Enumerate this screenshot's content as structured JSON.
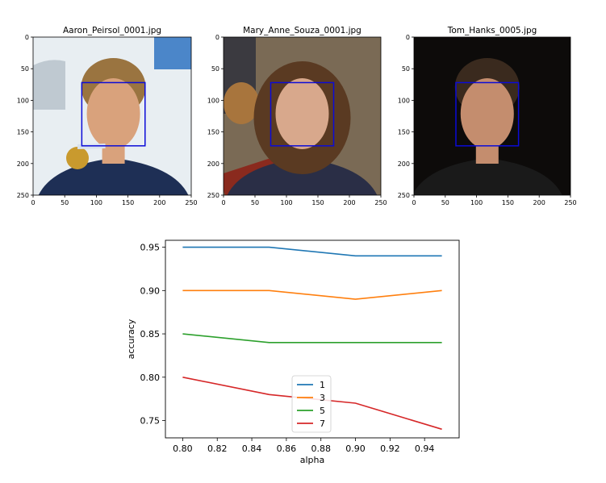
{
  "figure": {
    "images": [
      {
        "title": "Aaron_Peirsol_0001.jpg",
        "yticks": [
          "0",
          "50",
          "100",
          "150",
          "200",
          "250"
        ],
        "xticks": [
          "0",
          "50",
          "100",
          "150",
          "200",
          "250"
        ],
        "photo_colors": {
          "bg": "#e8eef2",
          "hair": "#9a7440",
          "skin": "#d9a27c",
          "shirt": "#1e2f55",
          "medal": "#c99a2e"
        }
      },
      {
        "title": "Mary_Anne_Souza_0001.jpg",
        "yticks": [
          "0",
          "50",
          "100",
          "150",
          "200",
          "250"
        ],
        "xticks": [
          "0",
          "50",
          "100",
          "150",
          "200",
          "250"
        ],
        "photo_colors": {
          "bg": "#7a6a55",
          "hair": "#5a3a22",
          "skin": "#d8a88c",
          "shirt": "#2a2e46",
          "medal": "#c2a065"
        }
      },
      {
        "title": "Tom_Hanks_0005.jpg",
        "yticks": [
          "0",
          "50",
          "100",
          "150",
          "200",
          "250"
        ],
        "xticks": [
          "0",
          "50",
          "100",
          "150",
          "200",
          "250"
        ],
        "photo_colors": {
          "bg": "#0d0b0a",
          "hair": "#3a2a1e",
          "skin": "#c48d6e",
          "shirt": "#1a1a1a",
          "medal": "#1a1a1a"
        }
      }
    ],
    "box_color": "#0b0bd8"
  },
  "chart_data": [
    {
      "type": "image",
      "title": "Aaron_Peirsol_0001.jpg",
      "xlim": [
        0,
        250
      ],
      "ylim": [
        250,
        0
      ],
      "xticks": [
        0,
        50,
        100,
        150,
        200,
        250
      ],
      "yticks": [
        0,
        50,
        100,
        150,
        200,
        250
      ],
      "annotations": [
        {
          "type": "rectangle",
          "x0": 77,
          "y0": 72,
          "x1": 177,
          "y1": 172,
          "color": "#0b0bd8"
        }
      ]
    },
    {
      "type": "image",
      "title": "Mary_Anne_Souza_0001.jpg",
      "xlim": [
        0,
        250
      ],
      "ylim": [
        250,
        0
      ],
      "xticks": [
        0,
        50,
        100,
        150,
        200,
        250
      ],
      "yticks": [
        0,
        50,
        100,
        150,
        200,
        250
      ],
      "annotations": [
        {
          "type": "rectangle",
          "x0": 75,
          "y0": 72,
          "x1": 175,
          "y1": 172,
          "color": "#0b0bd8"
        }
      ]
    },
    {
      "type": "image",
      "title": "Tom_Hanks_0005.jpg",
      "xlim": [
        0,
        250
      ],
      "ylim": [
        250,
        0
      ],
      "xticks": [
        0,
        50,
        100,
        150,
        200,
        250
      ],
      "yticks": [
        0,
        50,
        100,
        150,
        200,
        250
      ],
      "annotations": [
        {
          "type": "rectangle",
          "x0": 67,
          "y0": 72,
          "x1": 167,
          "y1": 172,
          "color": "#0b0bd8"
        }
      ]
    },
    {
      "type": "line",
      "title": "",
      "xlabel": "alpha",
      "ylabel": "accuracy",
      "x": [
        0.8,
        0.85,
        0.9,
        0.95
      ],
      "xlim": [
        0.79,
        0.96
      ],
      "ylim": [
        0.73,
        0.958
      ],
      "xticks": [
        "0.80",
        "0.82",
        "0.84",
        "0.86",
        "0.88",
        "0.90",
        "0.92",
        "0.94"
      ],
      "yticks": [
        "0.75",
        "0.80",
        "0.85",
        "0.90",
        "0.95"
      ],
      "grid": false,
      "legend_position": "lower center",
      "series": [
        {
          "name": "1",
          "color": "#1f77b4",
          "values": [
            0.95,
            0.95,
            0.94,
            0.94
          ]
        },
        {
          "name": "3",
          "color": "#ff7f0e",
          "values": [
            0.9,
            0.9,
            0.89,
            0.9
          ]
        },
        {
          "name": "5",
          "color": "#2ca02c",
          "values": [
            0.85,
            0.84,
            0.84,
            0.84
          ]
        },
        {
          "name": "7",
          "color": "#d62728",
          "values": [
            0.8,
            0.78,
            0.77,
            0.74
          ]
        }
      ]
    }
  ]
}
